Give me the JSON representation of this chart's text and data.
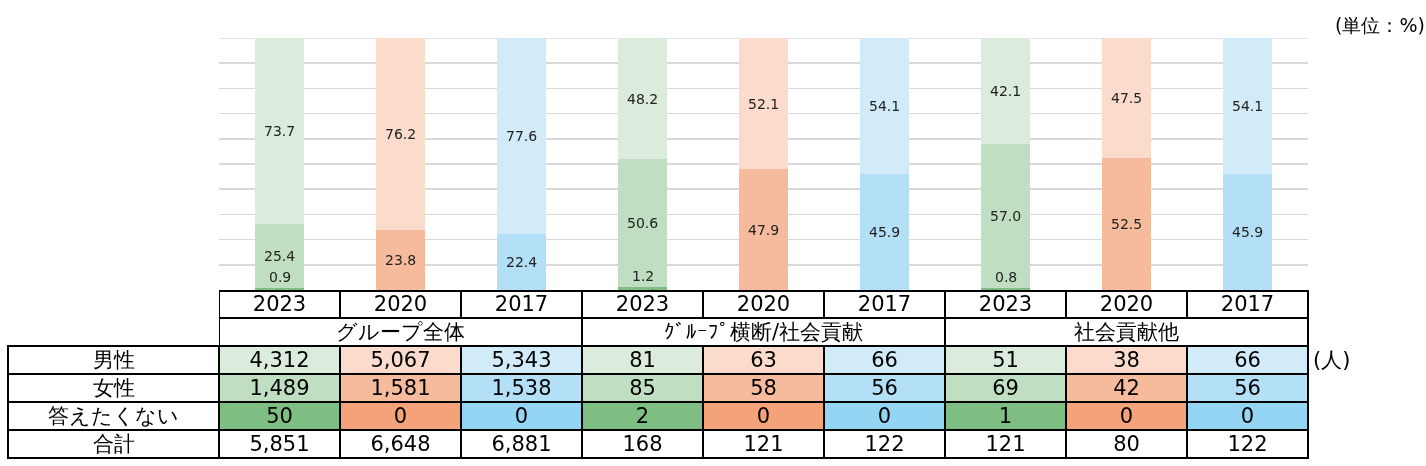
{
  "chart_data": [
    {
      "type": "bar",
      "stacked": true,
      "xlabel": "グループ全体",
      "categories": [
        "2023",
        "2020",
        "2017"
      ],
      "series": [
        {
          "colors": [
            "#7fbe82",
            "#f4a27a",
            "#94d5f4"
          ],
          "values": [
            0.9,
            0,
            0
          ],
          "value_labels": [
            "0.9",
            null,
            null
          ]
        },
        {
          "colors": [
            "#c0dfc2",
            "#f6bb9d",
            "#b3e0f6"
          ],
          "values": [
            25.4,
            23.8,
            22.4
          ],
          "value_labels": [
            "25.4",
            "23.8",
            "22.4"
          ]
        },
        {
          "colors": [
            "#dbecdd",
            "#fbdccc",
            "#d1ebf9"
          ],
          "values": [
            73.7,
            76.2,
            77.6
          ],
          "value_labels": [
            "73.7",
            "76.2",
            "77.6"
          ]
        }
      ],
      "ylim": [
        0,
        100
      ],
      "yticks": [
        {
          "value": 0,
          "label": null
        },
        {
          "value": 10,
          "label": null
        },
        {
          "value": 20,
          "label": null
        },
        {
          "value": 30,
          "label": null
        },
        {
          "value": 40,
          "label": null
        },
        {
          "value": 50,
          "label": null
        },
        {
          "value": 60,
          "label": null
        },
        {
          "value": 70,
          "label": null
        },
        {
          "value": 80,
          "label": null
        },
        {
          "value": 90,
          "label": null
        },
        {
          "value": 100,
          "label": null
        }
      ],
      "grid": "y",
      "tick_labels": "x"
    },
    {
      "type": "bar",
      "stacked": true,
      "xlabel": "ｸﾞﾙｰﾌﾟ横断/社会貢献",
      "categories": [
        "2023",
        "2020",
        "2017"
      ],
      "series": [
        {
          "colors": [
            "#7fbe82",
            "#f4a27a",
            "#94d5f4"
          ],
          "values": [
            1.2,
            0,
            0
          ],
          "value_labels": [
            "1.2",
            null,
            null
          ]
        },
        {
          "colors": [
            "#c0dfc2",
            "#f6bb9d",
            "#b3e0f6"
          ],
          "values": [
            50.6,
            47.9,
            45.9
          ],
          "value_labels": [
            "50.6",
            "47.9",
            "45.9"
          ]
        },
        {
          "colors": [
            "#dbecdd",
            "#fbdccc",
            "#d1ebf9"
          ],
          "values": [
            48.2,
            52.1,
            54.1
          ],
          "value_labels": [
            "48.2",
            "52.1",
            "54.1"
          ]
        }
      ],
      "ylim": [
        0,
        100
      ],
      "yticks": [
        {
          "value": 0,
          "label": null
        },
        {
          "value": 10,
          "label": null
        },
        {
          "value": 20,
          "label": null
        },
        {
          "value": 30,
          "label": null
        },
        {
          "value": 40,
          "label": null
        },
        {
          "value": 50,
          "label": null
        },
        {
          "value": 60,
          "label": null
        },
        {
          "value": 70,
          "label": null
        },
        {
          "value": 80,
          "label": null
        },
        {
          "value": 90,
          "label": null
        },
        {
          "value": 100,
          "label": null
        }
      ],
      "grid": "y",
      "tick_labels": "x"
    },
    {
      "type": "bar",
      "stacked": true,
      "xlabel": "社会貢献他",
      "categories": [
        "2023",
        "2020",
        "2017"
      ],
      "series": [
        {
          "colors": [
            "#7fbe82",
            "#f4a27a",
            "#94d5f4"
          ],
          "values": [
            0.8,
            0,
            0
          ],
          "value_labels": [
            "0.8",
            null,
            null
          ]
        },
        {
          "colors": [
            "#c0dfc2",
            "#f6bb9d",
            "#b3e0f6"
          ],
          "values": [
            57.0,
            52.5,
            45.9
          ],
          "value_labels": [
            "57.0",
            "52.5",
            "45.9"
          ]
        },
        {
          "colors": [
            "#dbecdd",
            "#fbdccc",
            "#d1ebf9"
          ],
          "values": [
            42.1,
            47.5,
            54.1
          ],
          "value_labels": [
            "42.1",
            "47.5",
            "54.1"
          ]
        }
      ],
      "ylim": [
        0,
        100
      ],
      "yticks": [
        {
          "value": 0,
          "label": null
        },
        {
          "value": 10,
          "label": null
        },
        {
          "value": 20,
          "label": null
        },
        {
          "value": 30,
          "label": null
        },
        {
          "value": 40,
          "label": null
        },
        {
          "value": 50,
          "label": null
        },
        {
          "value": 60,
          "label": null
        },
        {
          "value": 70,
          "label": null
        },
        {
          "value": 80,
          "label": null
        },
        {
          "value": 90,
          "label": null
        },
        {
          "value": 100,
          "label": null
        }
      ],
      "grid": "y",
      "tick_labels": "x",
      "annotations": [
        "(単位：%)"
      ]
    },
    {
      "type": "heatmap",
      "categories": [
        null,
        null,
        null,
        null,
        null,
        null,
        null,
        null,
        null
      ],
      "y_categories": [
        "男性",
        "女性",
        "答えたくない",
        "合計"
      ],
      "cells": [
        [
          4312,
          5067,
          5343,
          81,
          63,
          66,
          51,
          38,
          66
        ],
        [
          1489,
          1581,
          1538,
          85,
          58,
          56,
          69,
          42,
          56
        ],
        [
          50,
          0,
          0,
          2,
          0,
          0,
          1,
          0,
          0
        ],
        [
          5851,
          6648,
          6881,
          168,
          121,
          122,
          121,
          80,
          122
        ]
      ],
      "cell_labels": [
        [
          "4,312",
          "5,067",
          "5,343",
          "81",
          "63",
          "66",
          "51",
          "38",
          "66"
        ],
        [
          "1,489",
          "1,581",
          "1,538",
          "85",
          "58",
          "56",
          "69",
          "42",
          "56"
        ],
        [
          "50",
          "0",
          "0",
          "2",
          "0",
          "0",
          "1",
          "0",
          "0"
        ],
        [
          "5,851",
          "6,648",
          "6,881",
          "168",
          "121",
          "122",
          "121",
          "80",
          "122"
        ]
      ],
      "colors": [
        [
          "#dbecdd",
          "#fbdccc",
          "#d1ebf9",
          "#dbecdd",
          "#fbdccc",
          "#d1ebf9",
          "#dbecdd",
          "#fbdccc",
          "#d1ebf9"
        ],
        [
          "#c0dfc2",
          "#f6bb9d",
          "#b3e0f6",
          "#c0dfc2",
          "#f6bb9d",
          "#b3e0f6",
          "#c0dfc2",
          "#f6bb9d",
          "#b3e0f6"
        ],
        [
          "#7fbe82",
          "#f4a27a",
          "#94d5f4",
          "#7fbe82",
          "#f4a27a",
          "#94d5f4",
          "#7fbe82",
          "#f4a27a",
          "#94d5f4"
        ],
        [
          "#ffffff",
          "#ffffff",
          "#ffffff",
          "#ffffff",
          "#ffffff",
          "#ffffff",
          "#ffffff",
          "#ffffff",
          "#ffffff"
        ]
      ],
      "annotations": [
        "(人)"
      ]
    }
  ]
}
